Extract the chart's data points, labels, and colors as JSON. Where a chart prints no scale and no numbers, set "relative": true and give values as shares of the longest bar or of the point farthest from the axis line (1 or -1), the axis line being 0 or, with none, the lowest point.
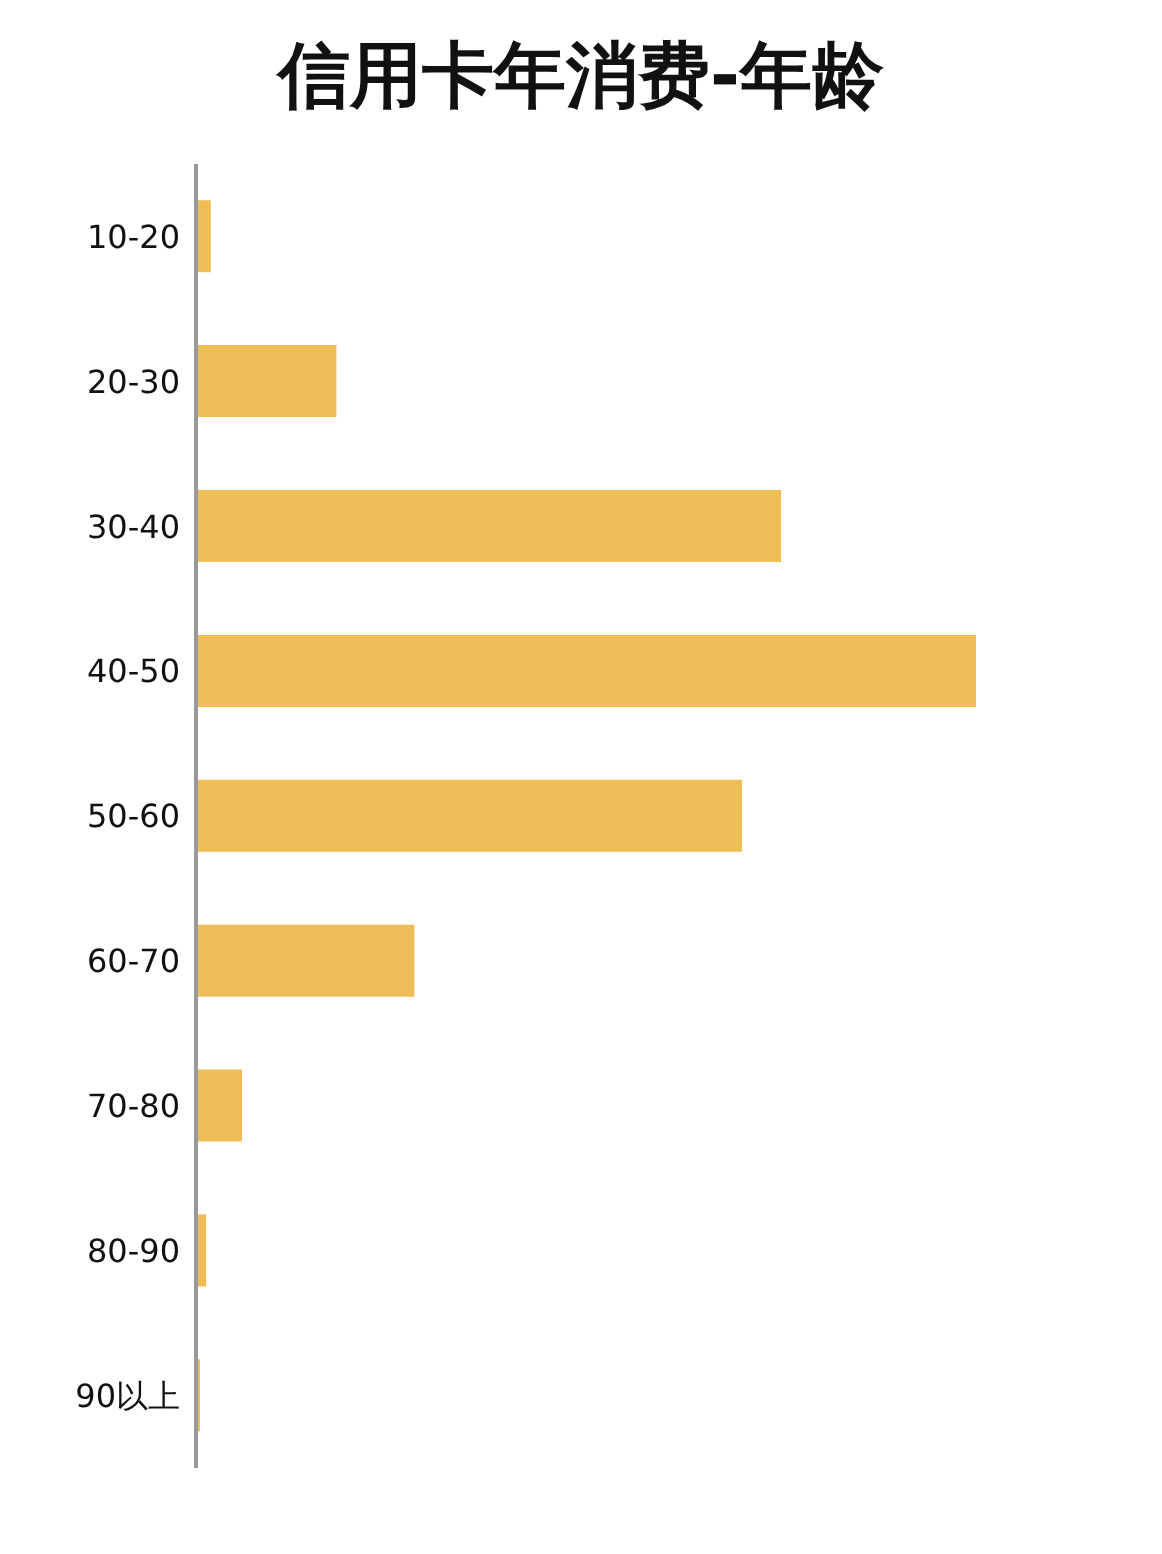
{
  "chart_data": {
    "type": "bar",
    "orientation": "horizontal",
    "relative": true,
    "title": "信用卡年消费-年龄",
    "categories": [
      "10-20",
      "20-30",
      "30-40",
      "40-50",
      "50-60",
      "60-70",
      "70-80",
      "80-90",
      "90以上"
    ],
    "values": [
      0.019,
      0.18,
      0.75,
      1,
      0.7,
      0.28,
      0.059,
      0.013,
      0.005
    ],
    "color": "#efbd55",
    "grid": false,
    "legend": false
  }
}
